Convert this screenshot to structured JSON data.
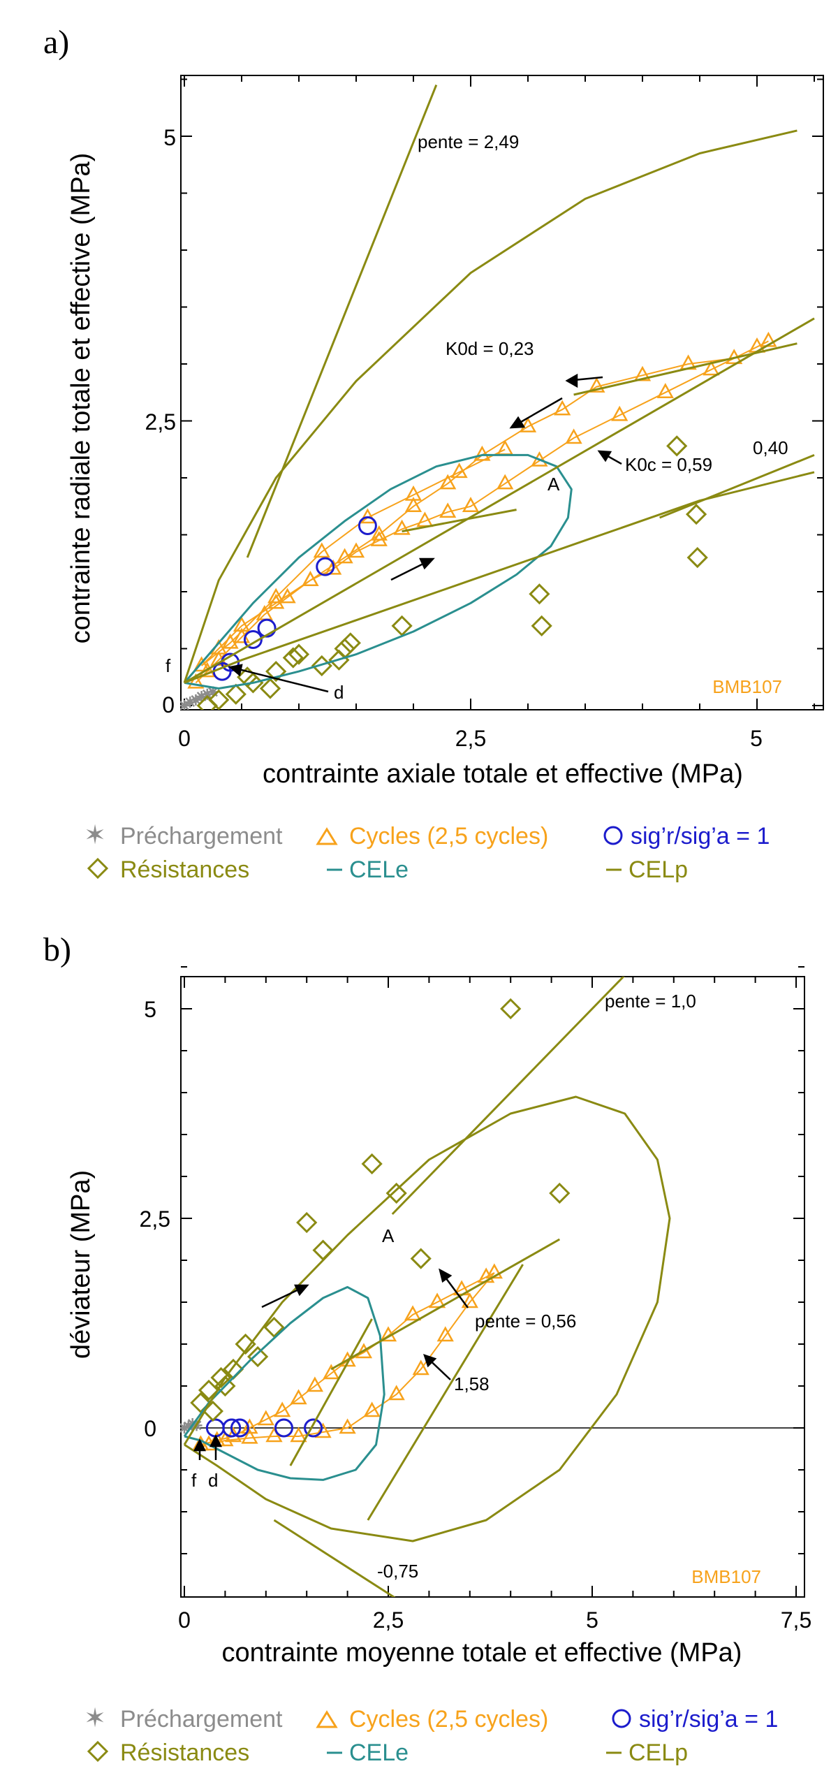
{
  "colors": {
    "precharge": "#8c8c8c",
    "cycles": "#f7a21b",
    "ratio": "#1c1ccc",
    "resist": "#8a8a12",
    "cele": "#2a8f8f",
    "celp": "#8a8a12",
    "axis": "#000000"
  },
  "legend": {
    "precharge": "Préchargement",
    "cycles": "Cycles  (2,5 cycles)",
    "ratio": "sig’r/sig’a = 1",
    "resist": "Résistances",
    "cele": "CELe",
    "celp": "CELp"
  },
  "chart_data": [
    {
      "panel_label": "a)",
      "type": "scatter",
      "xlabel": "contrainte axiale totale et effective (MPa)",
      "ylabel": "contrainte radiale totale et effective (MPa)",
      "xlim": [
        -0.1,
        5.5
      ],
      "ylim": [
        -0.1,
        5.5
      ],
      "xticks": [
        0,
        2.5,
        5
      ],
      "yticks": [
        0,
        2.5,
        5
      ],
      "xtick_labels": [
        "0",
        "2,5",
        "5"
      ],
      "ytick_labels": [
        "0",
        "2,5",
        "5"
      ],
      "sample": "BMB107",
      "annotations": {
        "pente": "pente = 2,49",
        "k0d": "K0d = 0,23",
        "k0c": "K0c = 0,59",
        "p040": "0,40",
        "A": "A",
        "f": "f",
        "d": "d"
      },
      "series": [
        {
          "name": "Préchargement",
          "kind": "star",
          "x": [
            0.0,
            0.05,
            0.1,
            0.15,
            0.2,
            0.25
          ],
          "y": [
            0.0,
            0.03,
            0.05,
            0.08,
            0.1,
            0.12
          ]
        },
        {
          "name": "Cycles  (2,5 cycles)",
          "kind": "triangle",
          "x": [
            0.1,
            0.2,
            0.3,
            0.5,
            0.7,
            0.9,
            1.1,
            1.3,
            1.5,
            1.7,
            1.9,
            2.1,
            2.3,
            2.5,
            2.8,
            3.1,
            3.4,
            3.8,
            4.2,
            4.6,
            5.0,
            5.1,
            4.8,
            4.4,
            4.0,
            3.6,
            3.3,
            3.0,
            2.6,
            2.3,
            2.0,
            1.7,
            1.4,
            1.1,
            0.8,
            0.5,
            0.3,
            0.15,
            0.4,
            0.8,
            1.2,
            1.6,
            2.0,
            2.4,
            2.8
          ],
          "y": [
            0.2,
            0.3,
            0.4,
            0.6,
            0.8,
            0.95,
            1.1,
            1.2,
            1.35,
            1.45,
            1.55,
            1.62,
            1.7,
            1.75,
            1.95,
            2.15,
            2.35,
            2.55,
            2.75,
            2.95,
            3.15,
            3.2,
            3.05,
            3.0,
            2.9,
            2.8,
            2.6,
            2.45,
            2.2,
            1.95,
            1.75,
            1.5,
            1.3,
            1.1,
            0.9,
            0.7,
            0.5,
            0.35,
            0.55,
            0.95,
            1.35,
            1.65,
            1.85,
            2.05,
            2.25
          ]
        },
        {
          "name": "sig’r/sig’a = 1",
          "kind": "circle",
          "x": [
            0.33,
            0.4,
            0.6,
            0.72,
            1.23,
            1.6
          ],
          "y": [
            0.3,
            0.38,
            0.58,
            0.68,
            1.22,
            1.58
          ]
        },
        {
          "name": "Résistances",
          "kind": "diamond",
          "x": [
            0.2,
            0.3,
            0.45,
            0.6,
            0.75,
            0.95,
            1.0,
            1.2,
            1.35,
            1.4,
            1.45,
            1.9,
            3.1,
            3.12,
            4.3,
            4.47,
            4.48,
            0.55,
            0.8
          ],
          "y": [
            0.0,
            0.05,
            0.1,
            0.2,
            0.15,
            0.42,
            0.45,
            0.35,
            0.4,
            0.5,
            0.55,
            0.7,
            0.98,
            0.7,
            2.28,
            1.68,
            1.3,
            0.25,
            0.3
          ]
        },
        {
          "name": "CELe",
          "kind": "line",
          "x": [
            0.0,
            0.3,
            0.6,
            1.0,
            1.4,
            1.8,
            2.2,
            2.6,
            3.0,
            3.25,
            3.38,
            3.35,
            3.2,
            2.9,
            2.5,
            2.0,
            1.5,
            1.0,
            0.6,
            0.3,
            0.0
          ],
          "y": [
            0.2,
            0.55,
            0.9,
            1.3,
            1.62,
            1.9,
            2.1,
            2.2,
            2.2,
            2.1,
            1.9,
            1.65,
            1.4,
            1.15,
            0.9,
            0.65,
            0.45,
            0.3,
            0.2,
            0.15,
            0.2
          ]
        },
        {
          "name": "CELp",
          "kind": "line",
          "x": [
            0.0,
            0.3,
            0.8,
            1.5,
            2.5,
            3.5,
            4.5,
            5.35
          ],
          "y": [
            0.2,
            1.1,
            2.0,
            2.85,
            3.8,
            4.45,
            4.85,
            5.05
          ]
        },
        {
          "name": "CELp",
          "kind": "line",
          "x": [
            0.0,
            0.5,
            1.5,
            2.5,
            3.5,
            4.5,
            5.5
          ],
          "y": [
            0.2,
            0.4,
            0.75,
            1.1,
            1.45,
            1.8,
            2.05
          ]
        },
        {
          "name": "CELp",
          "kind": "line",
          "x": [
            0.0,
            5.5
          ],
          "y": [
            0.2,
            3.4
          ]
        },
        {
          "name": "pente = 2,49",
          "kind": "line",
          "x": [
            0.55,
            2.2
          ],
          "y": [
            1.3,
            5.45
          ]
        },
        {
          "name": "K0d = 0,23",
          "kind": "line",
          "x": [
            3.4,
            5.35
          ],
          "y": [
            2.73,
            3.18
          ]
        },
        {
          "name": "K0c = 0,59",
          "kind": "line",
          "x": [
            1.9,
            2.9
          ],
          "y": [
            1.53,
            1.72
          ]
        },
        {
          "name": "0,40",
          "kind": "line",
          "x": [
            4.15,
            5.5
          ],
          "y": [
            1.65,
            2.2
          ]
        }
      ]
    },
    {
      "panel_label": "b)",
      "type": "scatter",
      "xlabel": "contrainte moyenne totale et effective (MPa)",
      "ylabel": "déviateur (MPa)",
      "xlim": [
        -0.1,
        7.5
      ],
      "ylim": [
        -1.9,
        5.5
      ],
      "xticks": [
        0,
        2.5,
        5,
        7.5
      ],
      "yticks": [
        0,
        2.5,
        5
      ],
      "xtick_labels": [
        "0",
        "2,5",
        "5",
        "7,5"
      ],
      "ytick_labels": [
        "0",
        "2,5",
        "5"
      ],
      "sample": "BMB107",
      "annotations": {
        "pente1": "pente = 1,0",
        "pente056": "pente = 0,56",
        "p158": "1,58",
        "m075": "-0,75",
        "A": "A",
        "f": "f",
        "d": "d"
      },
      "series": [
        {
          "name": "Préchargement",
          "kind": "star",
          "x": [
            0.0,
            0.05,
            0.1,
            0.15
          ],
          "y": [
            0.0,
            0.02,
            0.05,
            0.03
          ]
        },
        {
          "name": "Cycles  (2,5 cycles)",
          "kind": "triangle",
          "x": [
            0.2,
            0.4,
            0.6,
            0.8,
            1.0,
            1.2,
            1.4,
            1.6,
            1.8,
            2.0,
            2.2,
            2.5,
            2.8,
            3.1,
            3.4,
            3.7,
            3.8,
            3.5,
            3.2,
            2.9,
            2.6,
            2.3,
            2.0,
            1.7,
            1.4,
            1.1,
            0.8,
            0.5,
            0.3
          ],
          "y": [
            -0.2,
            -0.15,
            -0.1,
            0.0,
            0.1,
            0.2,
            0.35,
            0.5,
            0.65,
            0.8,
            0.9,
            1.1,
            1.35,
            1.5,
            1.65,
            1.8,
            1.85,
            1.5,
            1.1,
            0.7,
            0.4,
            0.2,
            0.0,
            -0.05,
            -0.1,
            -0.1,
            -0.12,
            -0.15,
            -0.2
          ]
        },
        {
          "name": "sig’r/sig’a = 1",
          "kind": "circle",
          "x": [
            0.38,
            0.58,
            0.68,
            1.22,
            1.58
          ],
          "y": [
            0.0,
            0.0,
            0.0,
            0.0,
            0.0
          ]
        },
        {
          "name": "Résistances",
          "kind": "diamond",
          "x": [
            4.0,
            2.3,
            2.6,
            4.6,
            1.5,
            1.7,
            2.9,
            1.1,
            0.75,
            0.9,
            0.6,
            0.45,
            0.3,
            0.2,
            0.5,
            0.35
          ],
          "y": [
            5.0,
            3.15,
            2.8,
            2.8,
            2.45,
            2.12,
            2.02,
            1.2,
            1.0,
            0.85,
            0.7,
            0.6,
            0.45,
            0.3,
            0.5,
            0.2
          ]
        },
        {
          "name": "CELe",
          "kind": "line",
          "x": [
            0.0,
            0.3,
            0.8,
            1.3,
            1.7,
            2.0,
            2.25,
            2.4,
            2.45,
            2.35,
            2.1,
            1.7,
            1.3,
            0.9,
            0.5,
            0.2,
            0.0
          ],
          "y": [
            -0.1,
            0.3,
            0.8,
            1.25,
            1.55,
            1.68,
            1.55,
            1.1,
            0.4,
            -0.2,
            -0.5,
            -0.62,
            -0.6,
            -0.5,
            -0.3,
            -0.15,
            -0.1
          ]
        },
        {
          "name": "CELp",
          "kind": "line",
          "x": [
            0.0,
            0.5,
            1.2,
            2.0,
            3.0,
            4.0,
            4.8,
            5.4,
            5.8,
            5.95,
            5.8,
            5.3,
            4.6,
            3.7,
            2.8,
            1.8,
            1.0,
            0.4,
            0.0
          ],
          "y": [
            -0.2,
            0.6,
            1.5,
            2.3,
            3.2,
            3.75,
            3.95,
            3.75,
            3.2,
            2.5,
            1.5,
            0.4,
            -0.5,
            -1.1,
            -1.35,
            -1.2,
            -0.85,
            -0.45,
            -0.2
          ]
        },
        {
          "name": "pente = 1,0",
          "kind": "line",
          "x": [
            2.55,
            5.5
          ],
          "y": [
            2.55,
            5.5
          ]
        },
        {
          "name": "pente = 0,56",
          "kind": "line",
          "x": [
            1.8,
            4.6
          ],
          "y": [
            0.7,
            2.25
          ]
        },
        {
          "name": "1,58",
          "kind": "line",
          "x": [
            2.25,
            4.15
          ],
          "y": [
            -1.1,
            1.95
          ]
        },
        {
          "name": "-0,75",
          "kind": "line",
          "x": [
            1.1,
            2.7
          ],
          "y": [
            -1.1,
            -2.1
          ]
        },
        {
          "name": "pente = 0,56",
          "kind": "line",
          "x": [
            1.3,
            2.3
          ],
          "y": [
            -0.45,
            1.3
          ]
        }
      ]
    }
  ]
}
